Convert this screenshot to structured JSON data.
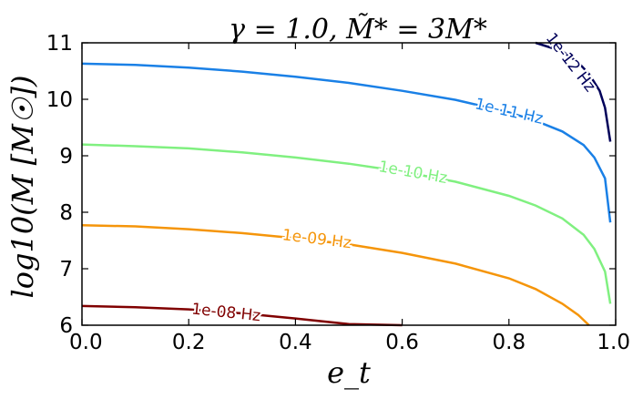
{
  "chart_data": {
    "type": "line",
    "title": "γ = 1.0, M̃* = 3M*",
    "xlabel": "e_t",
    "ylabel": "log10(M [M☉])",
    "xlim": [
      0.0,
      1.0
    ],
    "ylim": [
      6,
      11
    ],
    "xticks": [
      "0.0",
      "0.2",
      "0.4",
      "0.6",
      "0.8",
      "1.0"
    ],
    "yticks": [
      "6",
      "7",
      "8",
      "9",
      "10",
      "11"
    ],
    "grid": false,
    "legend": "none",
    "series": [
      {
        "name": "1e-12 Hz",
        "color": "#00005a",
        "x": [
          0.85,
          0.9,
          0.93,
          0.95,
          0.97,
          0.98,
          0.99
        ],
        "y": [
          11.0,
          10.85,
          10.65,
          10.45,
          10.15,
          9.85,
          9.25
        ]
      },
      {
        "name": "1e-11 Hz",
        "color": "#1a80e6",
        "x": [
          0.0,
          0.1,
          0.2,
          0.3,
          0.4,
          0.5,
          0.6,
          0.7,
          0.8,
          0.85,
          0.9,
          0.94,
          0.96,
          0.98,
          0.99
        ],
        "y": [
          10.63,
          10.61,
          10.56,
          10.49,
          10.4,
          10.29,
          10.15,
          9.99,
          9.77,
          9.62,
          9.43,
          9.19,
          8.97,
          8.6,
          7.82
        ]
      },
      {
        "name": "1e-10 Hz",
        "color": "#80f080",
        "x": [
          0.0,
          0.1,
          0.2,
          0.3,
          0.4,
          0.5,
          0.6,
          0.7,
          0.8,
          0.85,
          0.9,
          0.94,
          0.96,
          0.98,
          0.99
        ],
        "y": [
          9.2,
          9.17,
          9.13,
          9.06,
          8.97,
          8.86,
          8.72,
          8.54,
          8.29,
          8.12,
          7.89,
          7.6,
          7.35,
          6.95,
          6.38
        ]
      },
      {
        "name": "1e-09 Hz",
        "color": "#f5950a",
        "x": [
          0.0,
          0.1,
          0.2,
          0.3,
          0.4,
          0.5,
          0.6,
          0.7,
          0.8,
          0.85,
          0.9,
          0.93,
          0.95
        ],
        "y": [
          7.77,
          7.75,
          7.7,
          7.63,
          7.54,
          7.43,
          7.28,
          7.09,
          6.83,
          6.64,
          6.38,
          6.18,
          6.0
        ]
      },
      {
        "name": "1e-08 Hz",
        "color": "#800000",
        "x": [
          0.0,
          0.1,
          0.2,
          0.3,
          0.4,
          0.5,
          0.6
        ],
        "y": [
          6.34,
          6.32,
          6.28,
          6.21,
          6.12,
          6.02,
          5.99
        ]
      }
    ],
    "contour_labels": [
      {
        "text": "1e-12 Hz",
        "x": 0.915,
        "y": 10.65,
        "angle": 52
      },
      {
        "text": "1e-11 Hz",
        "x": 0.8,
        "y": 9.78,
        "angle": 13
      },
      {
        "text": "1e-10 Hz",
        "x": 0.62,
        "y": 8.7,
        "angle": 10
      },
      {
        "text": "1e-09 Hz",
        "x": 0.44,
        "y": 7.52,
        "angle": 7
      },
      {
        "text": "1e-08 Hz",
        "x": 0.27,
        "y": 6.22,
        "angle": 6
      }
    ]
  }
}
